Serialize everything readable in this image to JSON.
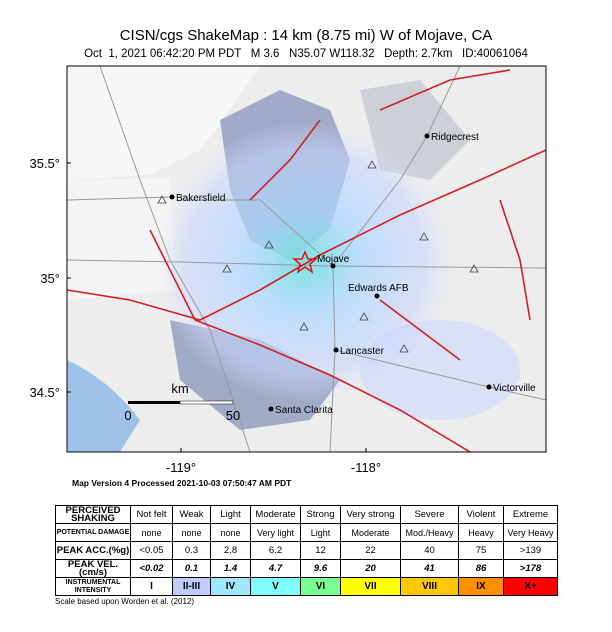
{
  "header": {
    "title": "CISN/cgs ShakeMap : 14 km (8.75 mi) W of Mojave, CA",
    "subtitle": "Oct  1, 2021 06:42:20 PM PDT   M 3.6   N35.07 W118.32   Depth: 2.7km   ID:40061064"
  },
  "map": {
    "lat_labels": [
      "35.5°",
      "35°",
      "34.5°"
    ],
    "lon_labels": [
      "-119°",
      "-118°"
    ],
    "places": [
      "Ridgecrest",
      "Bakersfield",
      "Mojave",
      "Edwards AFB",
      "Lancaster",
      "Victorville",
      "Santa Clarita"
    ],
    "scale": {
      "unit": "km",
      "labels": [
        "0",
        "50"
      ]
    }
  },
  "processed": "Map Version 4 Processed 2021-10-03 07:50:47 AM PDT",
  "legend": {
    "columns": [
      "Not felt",
      "Weak",
      "Light",
      "Moderate",
      "Strong",
      "Very strong",
      "Severe",
      "Violent",
      "Extreme"
    ],
    "rows": [
      {
        "label": "PERCEIVED SHAKING",
        "cells": [
          "Not felt",
          "Weak",
          "Light",
          "Moderate",
          "Strong",
          "Very strong",
          "Severe",
          "Violent",
          "Extreme"
        ]
      },
      {
        "label": "POTENTIAL DAMAGE",
        "cells": [
          "none",
          "none",
          "none",
          "Very light",
          "Light",
          "Moderate",
          "Mod./Heavy",
          "Heavy",
          "Very Heavy"
        ]
      },
      {
        "label": "PEAK ACC.(%g)",
        "cells": [
          "<0.05",
          "0.3",
          "2.8",
          "6.2",
          "12",
          "22",
          "40",
          "75",
          ">139"
        ]
      },
      {
        "label": "PEAK VEL.(cm/s)",
        "cells": [
          "<0.02",
          "0.1",
          "1.4",
          "4.7",
          "9.6",
          "20",
          "41",
          "86",
          ">178"
        ]
      },
      {
        "label": "INSTRUMENTAL INTENSITY",
        "cells": [
          "I",
          "II-III",
          "IV",
          "V",
          "VI",
          "VII",
          "VIII",
          "IX",
          "X+"
        ]
      }
    ],
    "colors": [
      "#ffffff",
      "#bfccff",
      "#a0e6ff",
      "#80ffff",
      "#7aff93",
      "#ffff00",
      "#ffc800",
      "#ff9100",
      "#ff0000"
    ]
  },
  "footnote": "Scale based upon Worden et al. (2012)"
}
